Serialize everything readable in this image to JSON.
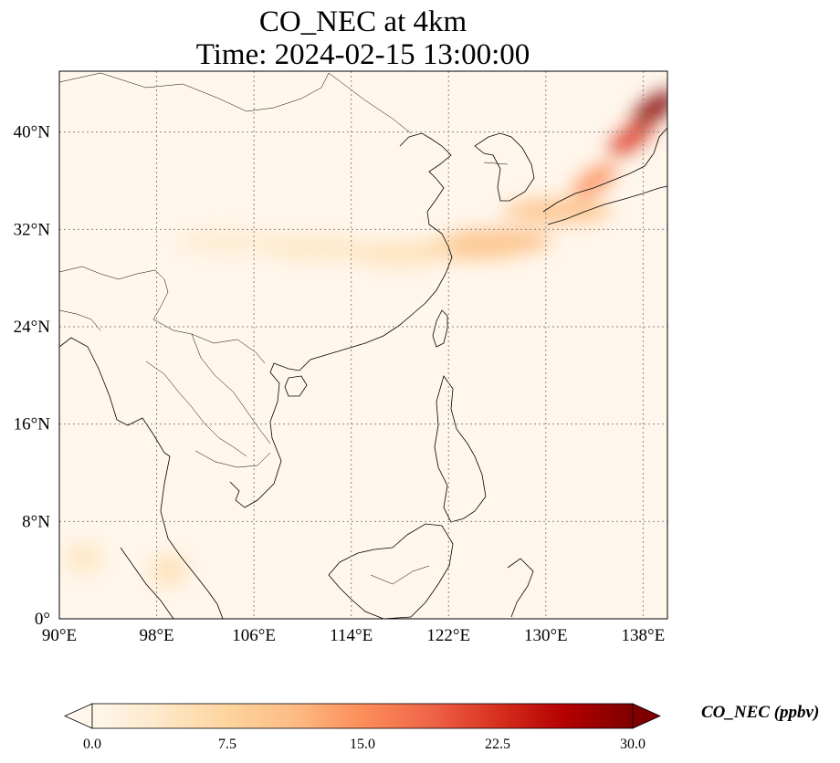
{
  "title": {
    "line1": "CO_NEC at 4km",
    "line2": "Time: 2024-02-15 13:00:00"
  },
  "map": {
    "projection": "PlateCarree",
    "lon_range": [
      90,
      140
    ],
    "lat_range": [
      0,
      45
    ],
    "gridlines": true,
    "gridline_style": "dotted",
    "lon_ticks": [
      {
        "value": 90,
        "label": "90°E"
      },
      {
        "value": 98,
        "label": "98°E"
      },
      {
        "value": 106,
        "label": "106°E"
      },
      {
        "value": 114,
        "label": "114°E"
      },
      {
        "value": 122,
        "label": "122°E"
      },
      {
        "value": 130,
        "label": "130°E"
      },
      {
        "value": 138,
        "label": "138°E"
      }
    ],
    "lat_ticks": [
      {
        "value": 0,
        "label": "0°"
      },
      {
        "value": 8,
        "label": "8°N"
      },
      {
        "value": 16,
        "label": "16°N"
      },
      {
        "value": 24,
        "label": "24°N"
      },
      {
        "value": 32,
        "label": "32°N"
      },
      {
        "value": 40,
        "label": "40°N"
      }
    ],
    "colormap": "OrRd",
    "background_color": "#fff7ec",
    "plumes": [
      {
        "lon": 131,
        "lat": 33.5,
        "value": 10
      },
      {
        "lon": 126,
        "lat": 31,
        "value": 11
      },
      {
        "lon": 124,
        "lat": 30.5,
        "value": 9
      },
      {
        "lon": 118,
        "lat": 30,
        "value": 5
      },
      {
        "lon": 111,
        "lat": 30.5,
        "value": 4
      },
      {
        "lon": 104,
        "lat": 31,
        "value": 3
      },
      {
        "lon": 134,
        "lat": 36,
        "value": 15
      },
      {
        "lon": 137,
        "lat": 39.5,
        "value": 22
      },
      {
        "lon": 139,
        "lat": 42,
        "value": 30
      },
      {
        "lon": 99,
        "lat": 4,
        "value": 5
      },
      {
        "lon": 92,
        "lat": 5,
        "value": 4
      }
    ]
  },
  "colorbar": {
    "label": "CO_NEC (ppbv)",
    "vmin": 0,
    "vmax": 30,
    "extend": "both",
    "ticks": [
      {
        "value": 0,
        "label": "0.0"
      },
      {
        "value": 7.5,
        "label": "7.5"
      },
      {
        "value": 15,
        "label": "15.0"
      },
      {
        "value": 22.5,
        "label": "22.5"
      },
      {
        "value": 30,
        "label": "30.0"
      }
    ],
    "colors": [
      "#fff7ec",
      "#fee8c8",
      "#fdd49e",
      "#fdbb84",
      "#fc8d59",
      "#ef6548",
      "#d7301f",
      "#b30000",
      "#7f0000"
    ]
  }
}
